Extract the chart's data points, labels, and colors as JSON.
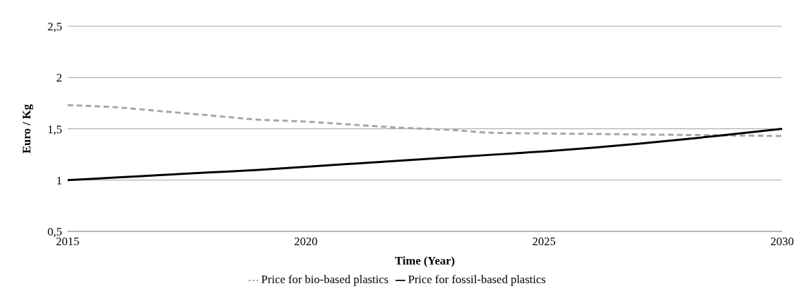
{
  "chart_data": {
    "type": "line",
    "xlabel": "Time (Year)",
    "ylabel": "Euro / Kg",
    "x": [
      2015,
      2016,
      2017,
      2018,
      2019,
      2020,
      2021,
      2022,
      2023,
      2024,
      2025,
      2026,
      2027,
      2028,
      2029,
      2030
    ],
    "series": [
      {
        "name": "Price for bio-based plastics",
        "color": "#a6a6a6",
        "line_style": "dashed",
        "values": [
          1.73,
          1.71,
          1.67,
          1.63,
          1.59,
          1.57,
          1.54,
          1.51,
          1.49,
          1.46,
          1.455,
          1.45,
          1.445,
          1.44,
          1.435,
          1.43
        ]
      },
      {
        "name": "Price for fossil-based plastics",
        "color": "#000000",
        "line_style": "solid",
        "values": [
          1.0,
          1.025,
          1.05,
          1.075,
          1.1,
          1.13,
          1.16,
          1.19,
          1.22,
          1.25,
          1.28,
          1.315,
          1.355,
          1.4,
          1.45,
          1.5
        ]
      }
    ],
    "xlim": [
      2015,
      2030
    ],
    "xticks": [
      2015,
      2020,
      2025,
      2030
    ],
    "ylim": [
      0.5,
      2.5
    ],
    "yticks": [
      {
        "value": 0.5,
        "label": "0,5"
      },
      1,
      {
        "value": 1.5,
        "label": "1,5"
      },
      2,
      {
        "value": 2.5,
        "label": "2,5"
      }
    ],
    "grid": "y",
    "legend": "bottom",
    "marker": "none"
  }
}
